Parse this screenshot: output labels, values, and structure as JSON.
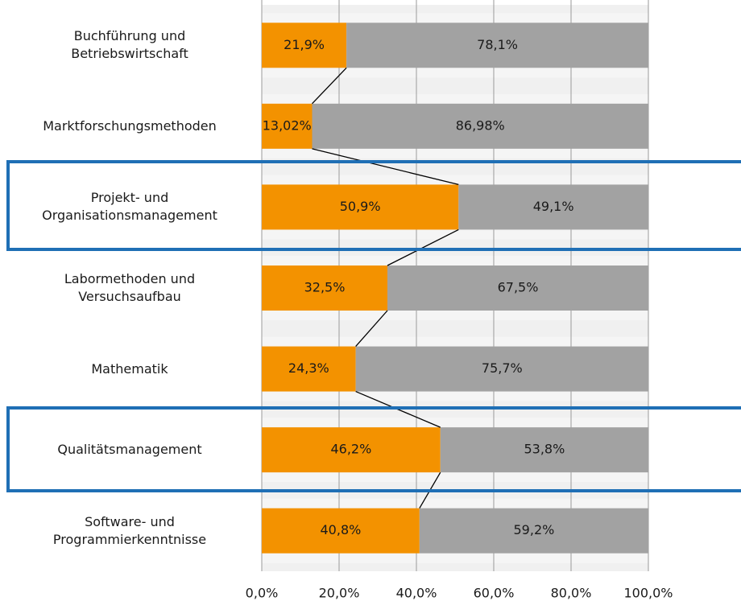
{
  "chart_data": {
    "type": "stacked_bar_horizontal",
    "categories": [
      "Buchführung und\nBetriebswirtschaft",
      "Marktforschungsmethoden",
      "Projekt- und\nOrganisationsmanagement",
      "Labormethoden und\nVersuchsaufbau",
      "Mathematik",
      "Qualitätsmanagement",
      "Software- und\nProgrammierkenntnisse"
    ],
    "series": [
      {
        "color": "#f39200",
        "values": [
          21.9,
          13.02,
          50.9,
          32.5,
          24.3,
          46.2,
          40.8
        ],
        "value_labels": [
          "21,9%",
          "13,02%",
          "50,9%",
          "32,5%",
          "24,3%",
          "46,2%",
          "40,8%"
        ]
      },
      {
        "color": "#a2a2a2",
        "values": [
          78.1,
          86.98,
          49.1,
          67.5,
          75.7,
          53.8,
          59.2
        ],
        "value_labels": [
          "78,1%",
          "86,98%",
          "49,1%",
          "67,5%",
          "75,7%",
          "53,8%",
          "59,2%"
        ]
      }
    ],
    "xlim": [
      0,
      100
    ],
    "xticks": [
      {
        "value": 0,
        "label": "0,0%"
      },
      {
        "value": 20,
        "label": "20,0%"
      },
      {
        "value": 40,
        "label": "40,0%"
      },
      {
        "value": 60,
        "label": "60,0%"
      },
      {
        "value": 80,
        "label": "80,0%"
      },
      {
        "value": 100,
        "label": "100,0%"
      }
    ],
    "grid": true
  }
}
